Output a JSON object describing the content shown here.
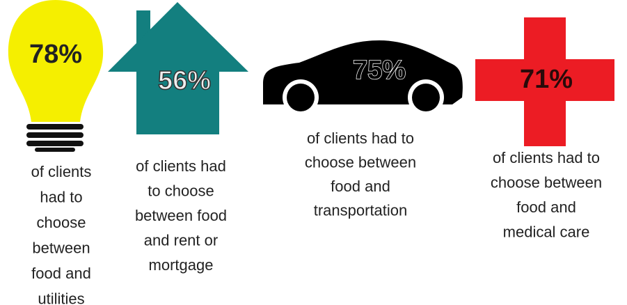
{
  "items": [
    {
      "stat": "78%",
      "lines": [
        "of clients",
        "had to",
        "choose",
        "between",
        "food and",
        "utilities"
      ]
    },
    {
      "stat": "56%",
      "lines": [
        "of clients had",
        "to choose",
        "between food",
        "and rent or",
        "mortgage"
      ]
    },
    {
      "stat": "75%",
      "lines": [
        "of clients had to",
        "choose between",
        "food and",
        "transportation"
      ]
    },
    {
      "stat": "71%",
      "lines": [
        "of clients had to",
        "choose between",
        "food and",
        "medical care"
      ]
    }
  ]
}
